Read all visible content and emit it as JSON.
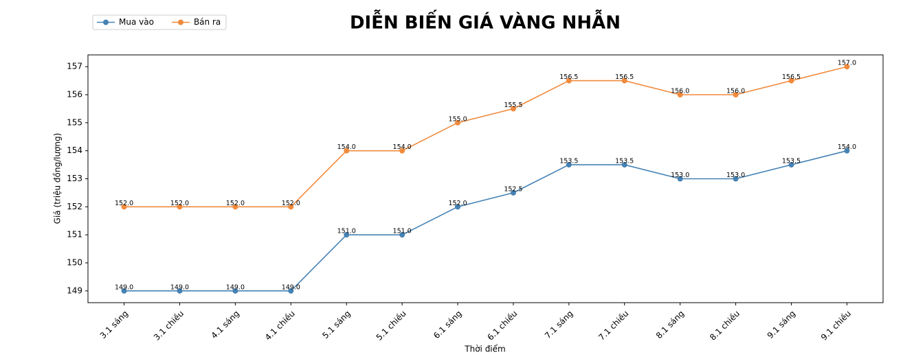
{
  "chart_data": {
    "type": "line",
    "title": "DIỄN BIẾN GIÁ VÀNG NHẪN",
    "x_label": "Thời điểm",
    "y_label": "Giá (triệu đồng/lượng)",
    "categories": [
      "3.1 sáng",
      "3.1 chiều",
      "4.1 sáng",
      "4.1 chiều",
      "5.1 sáng",
      "5.1 chiều",
      "6.1 sáng",
      "6.1 chiều",
      "7.1 sáng",
      "7.1 chiều",
      "8.1 sáng",
      "8.1 chiều",
      "9.1 sáng",
      "9.1 chiều"
    ],
    "series": [
      {
        "name": "Mua vào",
        "color": "#4682b4",
        "values": [
          149,
          149,
          149,
          149,
          151,
          151,
          152,
          152.5,
          153.5,
          153.5,
          153,
          153,
          153.5,
          154
        ],
        "value_labels": [
          "149.0",
          "149.0",
          "149.0",
          "149.0",
          "151.0",
          "151.0",
          "152.0",
          "152.5",
          "153.5",
          "153.5",
          "153.0",
          "153.0",
          "153.5",
          "154.0"
        ]
      },
      {
        "name": "Bán ra",
        "color": "#f08a3c",
        "values": [
          152,
          152,
          152,
          152,
          154,
          154,
          155,
          155.5,
          156.5,
          156.5,
          156,
          156,
          156.5,
          157
        ],
        "value_labels": [
          "152.0",
          "152.0",
          "152.0",
          "152.0",
          "154.0",
          "154.0",
          "155.0",
          "155.5",
          "156.5",
          "156.5",
          "156.0",
          "156.0",
          "156.5",
          "157.0"
        ]
      }
    ],
    "ylim": [
      148.58,
      157.42
    ],
    "yticks": [
      149,
      150,
      151,
      152,
      153,
      154,
      155,
      156,
      157
    ],
    "grid": false,
    "legend": "upper left"
  }
}
